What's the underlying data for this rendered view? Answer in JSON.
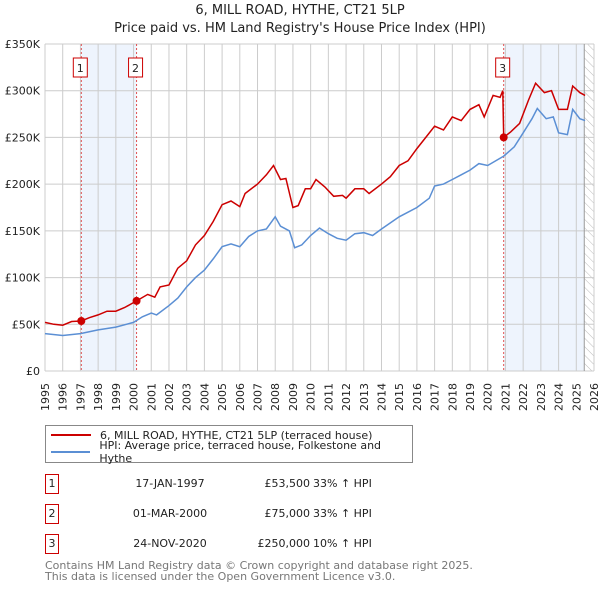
{
  "chart_data": {
    "type": "line",
    "title": "6, MILL ROAD, HYTHE, CT21 5LP",
    "subtitle": "Price paid vs. HM Land Registry's House Price Index (HPI)",
    "xlim": [
      1995,
      2026
    ],
    "ylim": [
      0,
      350000
    ],
    "x_ticks": [
      "1995",
      "1996",
      "1997",
      "1998",
      "1999",
      "2000",
      "2001",
      "2002",
      "2003",
      "2004",
      "2005",
      "2006",
      "2007",
      "2008",
      "2009",
      "2010",
      "2011",
      "2012",
      "2013",
      "2014",
      "2015",
      "2016",
      "2017",
      "2018",
      "2019",
      "2020",
      "2021",
      "2022",
      "2023",
      "2024",
      "2025",
      "2026"
    ],
    "y_ticks": [
      {
        "v": 0,
        "label": "£0"
      },
      {
        "v": 50000,
        "label": "£50K"
      },
      {
        "v": 100000,
        "label": "£100K"
      },
      {
        "v": 150000,
        "label": "£150K"
      },
      {
        "v": 200000,
        "label": "£200K"
      },
      {
        "v": 250000,
        "label": "£250K"
      },
      {
        "v": 300000,
        "label": "£300K"
      },
      {
        "v": 350000,
        "label": "£350K"
      }
    ],
    "grid": true,
    "shaded_periods": [
      [
        1997.05,
        2000.17
      ],
      [
        2020.9,
        2025.45
      ]
    ],
    "future_hatch_from": 2025.45,
    "series": [
      {
        "name": "6, MILL ROAD, HYTHE, CT21 5LP (terraced house)",
        "color": "#cc0000",
        "points": [
          [
            1995,
            52
          ],
          [
            1995.5,
            50
          ],
          [
            1996,
            49
          ],
          [
            1996.5,
            53
          ],
          [
            1997.05,
            53.5
          ],
          [
            1997.5,
            57
          ],
          [
            1998,
            60
          ],
          [
            1998.5,
            64
          ],
          [
            1999,
            64
          ],
          [
            1999.5,
            68
          ],
          [
            2000.17,
            75
          ],
          [
            2000.8,
            82
          ],
          [
            2001.2,
            79
          ],
          [
            2001.5,
            90
          ],
          [
            2002,
            92
          ],
          [
            2002.5,
            110
          ],
          [
            2003,
            118
          ],
          [
            2003.5,
            135
          ],
          [
            2004,
            145
          ],
          [
            2004.5,
            160
          ],
          [
            2005,
            178
          ],
          [
            2005.5,
            182
          ],
          [
            2006,
            176
          ],
          [
            2006.3,
            190
          ],
          [
            2007,
            200
          ],
          [
            2007.5,
            210
          ],
          [
            2007.9,
            220
          ],
          [
            2008.3,
            205
          ],
          [
            2008.6,
            206
          ],
          [
            2009,
            175
          ],
          [
            2009.3,
            177
          ],
          [
            2009.7,
            195
          ],
          [
            2010,
            195
          ],
          [
            2010.3,
            205
          ],
          [
            2010.8,
            197
          ],
          [
            2011.3,
            187
          ],
          [
            2011.8,
            188
          ],
          [
            2012,
            185
          ],
          [
            2012.5,
            195
          ],
          [
            2013,
            195
          ],
          [
            2013.3,
            190
          ],
          [
            2014,
            200
          ],
          [
            2014.5,
            208
          ],
          [
            2015,
            220
          ],
          [
            2015.5,
            225
          ],
          [
            2016,
            238
          ],
          [
            2016.5,
            250
          ],
          [
            2017,
            262
          ],
          [
            2017.5,
            258
          ],
          [
            2018,
            272
          ],
          [
            2018.5,
            268
          ],
          [
            2019,
            280
          ],
          [
            2019.5,
            285
          ],
          [
            2019.8,
            272
          ],
          [
            2020.3,
            295
          ],
          [
            2020.7,
            293
          ],
          [
            2020.85,
            300
          ],
          [
            2020.9,
            250
          ],
          [
            2021.3,
            256
          ],
          [
            2021.8,
            265
          ],
          [
            2022.3,
            290
          ],
          [
            2022.7,
            308
          ],
          [
            2023.2,
            298
          ],
          [
            2023.6,
            300
          ],
          [
            2024,
            280
          ],
          [
            2024.5,
            280
          ],
          [
            2024.8,
            305
          ],
          [
            2025.2,
            298
          ],
          [
            2025.5,
            295
          ]
        ]
      },
      {
        "name": "HPI: Average price, terraced house, Folkestone and Hythe",
        "color": "#5b8fd4",
        "points": [
          [
            1995,
            40
          ],
          [
            1996,
            38
          ],
          [
            1997,
            40
          ],
          [
            1998,
            44
          ],
          [
            1999,
            47
          ],
          [
            2000,
            52
          ],
          [
            2000.5,
            58
          ],
          [
            2001,
            62
          ],
          [
            2001.3,
            60
          ],
          [
            2002,
            70
          ],
          [
            2002.5,
            78
          ],
          [
            2003,
            90
          ],
          [
            2003.5,
            100
          ],
          [
            2004,
            108
          ],
          [
            2004.5,
            120
          ],
          [
            2005,
            133
          ],
          [
            2005.5,
            136
          ],
          [
            2006,
            133
          ],
          [
            2006.5,
            144
          ],
          [
            2007,
            150
          ],
          [
            2007.5,
            152
          ],
          [
            2008,
            165
          ],
          [
            2008.3,
            155
          ],
          [
            2008.8,
            150
          ],
          [
            2009.1,
            132
          ],
          [
            2009.5,
            135
          ],
          [
            2010,
            145
          ],
          [
            2010.5,
            153
          ],
          [
            2011,
            147
          ],
          [
            2011.5,
            142
          ],
          [
            2012,
            140
          ],
          [
            2012.5,
            147
          ],
          [
            2013,
            148
          ],
          [
            2013.5,
            145
          ],
          [
            2014,
            152
          ],
          [
            2015,
            165
          ],
          [
            2015.5,
            170
          ],
          [
            2016,
            175
          ],
          [
            2016.7,
            185
          ],
          [
            2017,
            198
          ],
          [
            2017.5,
            200
          ],
          [
            2018,
            205
          ],
          [
            2018.5,
            210
          ],
          [
            2019,
            215
          ],
          [
            2019.5,
            222
          ],
          [
            2020,
            220
          ],
          [
            2020.9,
            230
          ],
          [
            2021.5,
            240
          ],
          [
            2022,
            255
          ],
          [
            2022.5,
            270
          ],
          [
            2022.8,
            281
          ],
          [
            2023.3,
            270
          ],
          [
            2023.7,
            272
          ],
          [
            2024,
            255
          ],
          [
            2024.5,
            253
          ],
          [
            2024.8,
            280
          ],
          [
            2025.2,
            270
          ],
          [
            2025.5,
            268
          ]
        ]
      }
    ],
    "sales": [
      {
        "id": "1",
        "x": 1997.05,
        "price": 53500,
        "date": "17-JAN-1997",
        "price_label": "£53,500",
        "hpi": "33% ↑ HPI"
      },
      {
        "id": "2",
        "x": 2000.17,
        "price": 75000,
        "date": "01-MAR-2000",
        "price_label": "£75,000",
        "hpi": "33% ↑ HPI"
      },
      {
        "id": "3",
        "x": 2020.9,
        "price": 250000,
        "date": "24-NOV-2020",
        "price_label": "£250,000",
        "hpi": "10% ↑ HPI"
      }
    ]
  },
  "legend": {
    "red": "6, MILL ROAD, HYTHE, CT21 5LP (terraced house)",
    "blue": "HPI: Average price, terraced house, Folkestone and Hythe"
  },
  "footer": {
    "line1": "Contains HM Land Registry data © Crown copyright and database right 2025.",
    "line2": "This data is licensed under the Open Government Licence v3.0."
  },
  "colors": {
    "red": "#cc0000",
    "blue": "#5b8fd4",
    "shade": "#eef4fd",
    "grid": "#cccccc"
  }
}
